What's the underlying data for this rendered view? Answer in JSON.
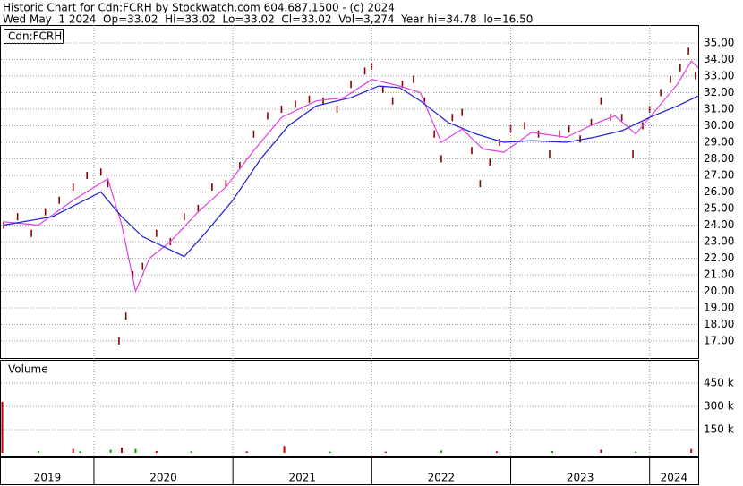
{
  "chart_data": [
    {
      "type": "line",
      "title": "Historic Chart for Cdn:FCRH by Stockwatch.com 604.687.1500 - (c) 2024",
      "subtitle": "Wed May  1 2024  Op=33.02  Hi=33.02  Lo=33.02  Cl=33.02  Vol=3,274  Year hi=34.78  lo=16.50",
      "label": "Cdn:FCRH",
      "xlim": [
        2019.33,
        2024.35
      ],
      "ylim": [
        15.97,
        36.08
      ],
      "yticks": [
        {
          "value": 17,
          "label": "17.00"
        },
        {
          "value": 18,
          "label": "18.00"
        },
        {
          "value": 19,
          "label": "19.00"
        },
        {
          "value": 20,
          "label": "20.00"
        },
        {
          "value": 21,
          "label": "21.00"
        },
        {
          "value": 22,
          "label": "22.00"
        },
        {
          "value": 23,
          "label": "23.00"
        },
        {
          "value": 24,
          "label": "24.00"
        },
        {
          "value": 25,
          "label": "25.00"
        },
        {
          "value": 26,
          "label": "26.00"
        },
        {
          "value": 27,
          "label": "27.00"
        },
        {
          "value": 28,
          "label": "28.00"
        },
        {
          "value": 29,
          "label": "29.00"
        },
        {
          "value": 30,
          "label": "30.00"
        },
        {
          "value": 31,
          "label": "31.00"
        },
        {
          "value": 32,
          "label": "32.00"
        },
        {
          "value": 33,
          "label": "33.00"
        },
        {
          "value": 34,
          "label": "34.00"
        },
        {
          "value": 35,
          "label": "35.00"
        }
      ],
      "grid": true,
      "series": [
        {
          "style": "ticks",
          "color": "#8b0000",
          "x": [
            2019.35,
            2019.45,
            2019.55,
            2019.65,
            2019.75,
            2019.85,
            2019.95,
            2020.05,
            2020.1,
            2020.18,
            2020.23,
            2020.28,
            2020.35,
            2020.45,
            2020.55,
            2020.65,
            2020.75,
            2020.85,
            2020.95,
            2021.05,
            2021.15,
            2021.25,
            2021.35,
            2021.45,
            2021.55,
            2021.65,
            2021.75,
            2021.85,
            2021.95,
            2022.0,
            2022.08,
            2022.15,
            2022.22,
            2022.3,
            2022.38,
            2022.45,
            2022.5,
            2022.58,
            2022.65,
            2022.72,
            2022.78,
            2022.85,
            2022.92,
            2023.0,
            2023.1,
            2023.2,
            2023.28,
            2023.35,
            2023.42,
            2023.5,
            2023.58,
            2023.65,
            2023.72,
            2023.8,
            2023.88,
            2023.95,
            2024.0,
            2024.08,
            2024.15,
            2024.22,
            2024.28,
            2024.33
          ],
          "values": [
            24.0,
            24.5,
            23.5,
            24.8,
            25.5,
            26.3,
            27.0,
            27.2,
            26.5,
            17.0,
            18.5,
            21.0,
            21.5,
            23.5,
            23.0,
            24.5,
            25.0,
            26.3,
            26.5,
            27.6,
            29.5,
            30.6,
            31.0,
            31.3,
            31.6,
            31.5,
            31.0,
            32.5,
            33.3,
            33.6,
            32.2,
            31.5,
            32.5,
            32.8,
            31.5,
            29.5,
            28.0,
            30.5,
            30.8,
            28.5,
            26.5,
            27.8,
            29.0,
            29.8,
            30.0,
            29.5,
            28.3,
            29.5,
            29.8,
            29.2,
            30.2,
            31.5,
            30.5,
            30.5,
            28.3,
            30.0,
            31.0,
            32.0,
            32.8,
            33.5,
            34.5,
            33.02
          ]
        },
        {
          "style": "line",
          "color": "#e040e0",
          "x": [
            2019.35,
            2019.6,
            2019.85,
            2020.1,
            2020.2,
            2020.3,
            2020.4,
            2020.55,
            2020.75,
            2020.95,
            2021.15,
            2021.35,
            2021.6,
            2021.8,
            2022.0,
            2022.2,
            2022.35,
            2022.5,
            2022.65,
            2022.8,
            2022.95,
            2023.15,
            2023.4,
            2023.6,
            2023.75,
            2023.9,
            2024.05,
            2024.2,
            2024.3,
            2024.35
          ],
          "values": [
            24.2,
            24.0,
            25.5,
            26.8,
            24.0,
            20.0,
            22.0,
            23.0,
            24.8,
            26.3,
            28.5,
            30.5,
            31.5,
            31.7,
            32.8,
            32.4,
            32.0,
            29.0,
            29.8,
            28.6,
            28.4,
            29.6,
            29.3,
            30.1,
            30.6,
            29.5,
            31.0,
            32.5,
            33.9,
            33.5
          ]
        },
        {
          "style": "line",
          "color": "#1c1cd0",
          "x": [
            2019.35,
            2019.7,
            2020.05,
            2020.2,
            2020.35,
            2020.55,
            2020.65,
            2020.8,
            2021.0,
            2021.2,
            2021.4,
            2021.6,
            2021.85,
            2022.05,
            2022.2,
            2022.35,
            2022.55,
            2022.75,
            2022.95,
            2023.15,
            2023.4,
            2023.6,
            2023.8,
            2024.0,
            2024.2,
            2024.35
          ],
          "values": [
            24.0,
            24.5,
            26.0,
            24.5,
            23.3,
            22.5,
            22.1,
            23.5,
            25.5,
            28.0,
            30.0,
            31.2,
            31.7,
            32.4,
            32.3,
            31.5,
            30.2,
            29.5,
            29.0,
            29.1,
            29.0,
            29.3,
            29.7,
            30.5,
            31.2,
            31.8
          ]
        }
      ]
    },
    {
      "type": "bar",
      "label": "Volume",
      "xlim": [
        2019.33,
        2024.35
      ],
      "ylim": [
        0,
        594000
      ],
      "yticks": [
        {
          "value": 150000,
          "label": "150 k"
        },
        {
          "value": 300000,
          "label": "300 k"
        },
        {
          "value": 450000,
          "label": "450 k"
        }
      ],
      "xticks": [
        2020,
        2021,
        2022,
        2023,
        2024
      ],
      "year_labels": [
        "2019",
        "2020",
        "2021",
        "2022",
        "2023",
        "2024"
      ],
      "x": [
        2019.34,
        2019.6,
        2019.85,
        2019.9,
        2020.12,
        2020.2,
        2020.3,
        2020.45,
        2020.7,
        2021.1,
        2021.37,
        2021.7,
        2022.1,
        2022.5,
        2022.9,
        2023.3,
        2023.65,
        2023.9,
        2024.3
      ],
      "values": [
        330000,
        12000,
        25000,
        10000,
        20000,
        35000,
        25000,
        12000,
        10000,
        10000,
        45000,
        8000,
        8000,
        15000,
        10000,
        12000,
        20000,
        8000,
        25000
      ],
      "colors": [
        "#cc0000",
        "#00a000",
        "#cc0000",
        "#00a000",
        "#00a000",
        "#cc0000",
        "#00a000",
        "#cc0000",
        "#00a000",
        "#cc0000",
        "#cc0000",
        "#00a000",
        "#cc0000",
        "#00a000",
        "#cc0000",
        "#00a000",
        "#cc0000",
        "#00a000",
        "#cc0000"
      ]
    }
  ]
}
